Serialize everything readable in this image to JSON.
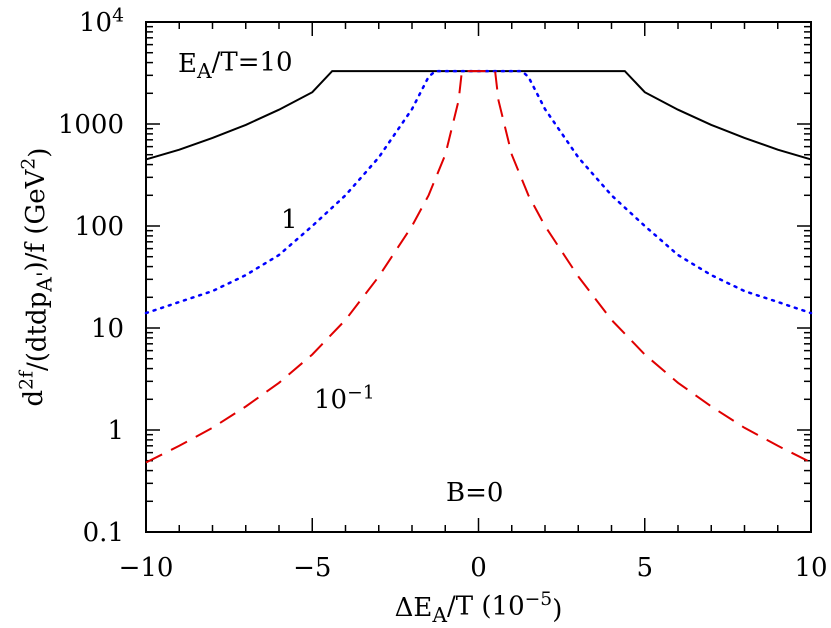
{
  "chart_data": {
    "type": "line",
    "title": "",
    "xlabel": "ΔE_A/T (10^-5)",
    "ylabel": "d^2f/(dtdp_A')/f (GeV^2)",
    "x_scale": "linear",
    "y_scale": "log",
    "xlim": [
      -10,
      10
    ],
    "ylim": [
      0.1,
      10000
    ],
    "grid": false,
    "x_ticks": [
      "−10",
      "−5",
      "0",
      "5",
      "10"
    ],
    "y_ticks": [
      "0.1",
      "1",
      "10",
      "100",
      "1000",
      "10^4"
    ],
    "series": [
      {
        "name": "E_A/T=10",
        "color": "#000000",
        "style": "solid",
        "x": [
          -10,
          -9,
          -8,
          -7,
          -6,
          -5,
          -4.4,
          0,
          4.4,
          5,
          6,
          7,
          8,
          9,
          10
        ],
        "y": [
          450,
          560,
          730,
          980,
          1380,
          2050,
          3300,
          3300,
          3300,
          2050,
          1380,
          980,
          730,
          560,
          450
        ]
      },
      {
        "name": "1",
        "color": "#0000ff",
        "style": "dotted",
        "x": [
          -10,
          -9,
          -8,
          -7,
          -6,
          -5,
          -4,
          -3,
          -2,
          -1.5,
          -1.3,
          1.3,
          1.5,
          2,
          3,
          4,
          5,
          6,
          7,
          8,
          9,
          10
        ],
        "y": [
          14,
          18,
          23,
          33,
          52,
          100,
          200,
          470,
          1400,
          2900,
          3300,
          3300,
          2900,
          1400,
          470,
          200,
          100,
          52,
          33,
          23,
          18,
          14
        ]
      },
      {
        "name": "10^-1",
        "color": "#e00000",
        "style": "dashed",
        "x": [
          -10,
          -9,
          -8,
          -7,
          -6,
          -5,
          -4,
          -3,
          -2,
          -1.5,
          -1,
          -0.6,
          -0.5,
          0.5,
          0.6,
          1,
          1.5,
          2,
          3,
          4,
          5,
          6,
          7,
          8,
          9,
          10
        ],
        "y": [
          0.48,
          0.7,
          1.05,
          1.7,
          2.9,
          5.5,
          12,
          32,
          100,
          200,
          500,
          1700,
          3300,
          3300,
          1700,
          500,
          200,
          100,
          32,
          12,
          5.5,
          2.9,
          1.7,
          1.05,
          0.7,
          0.48
        ]
      }
    ],
    "annotations": [
      {
        "text": "E_A/T=10",
        "color": "#000000"
      },
      {
        "text": "1",
        "color": "#0000ff"
      },
      {
        "text": "10^-1",
        "color": "#e00000"
      },
      {
        "text": "B=0",
        "color": "#000000"
      }
    ]
  }
}
